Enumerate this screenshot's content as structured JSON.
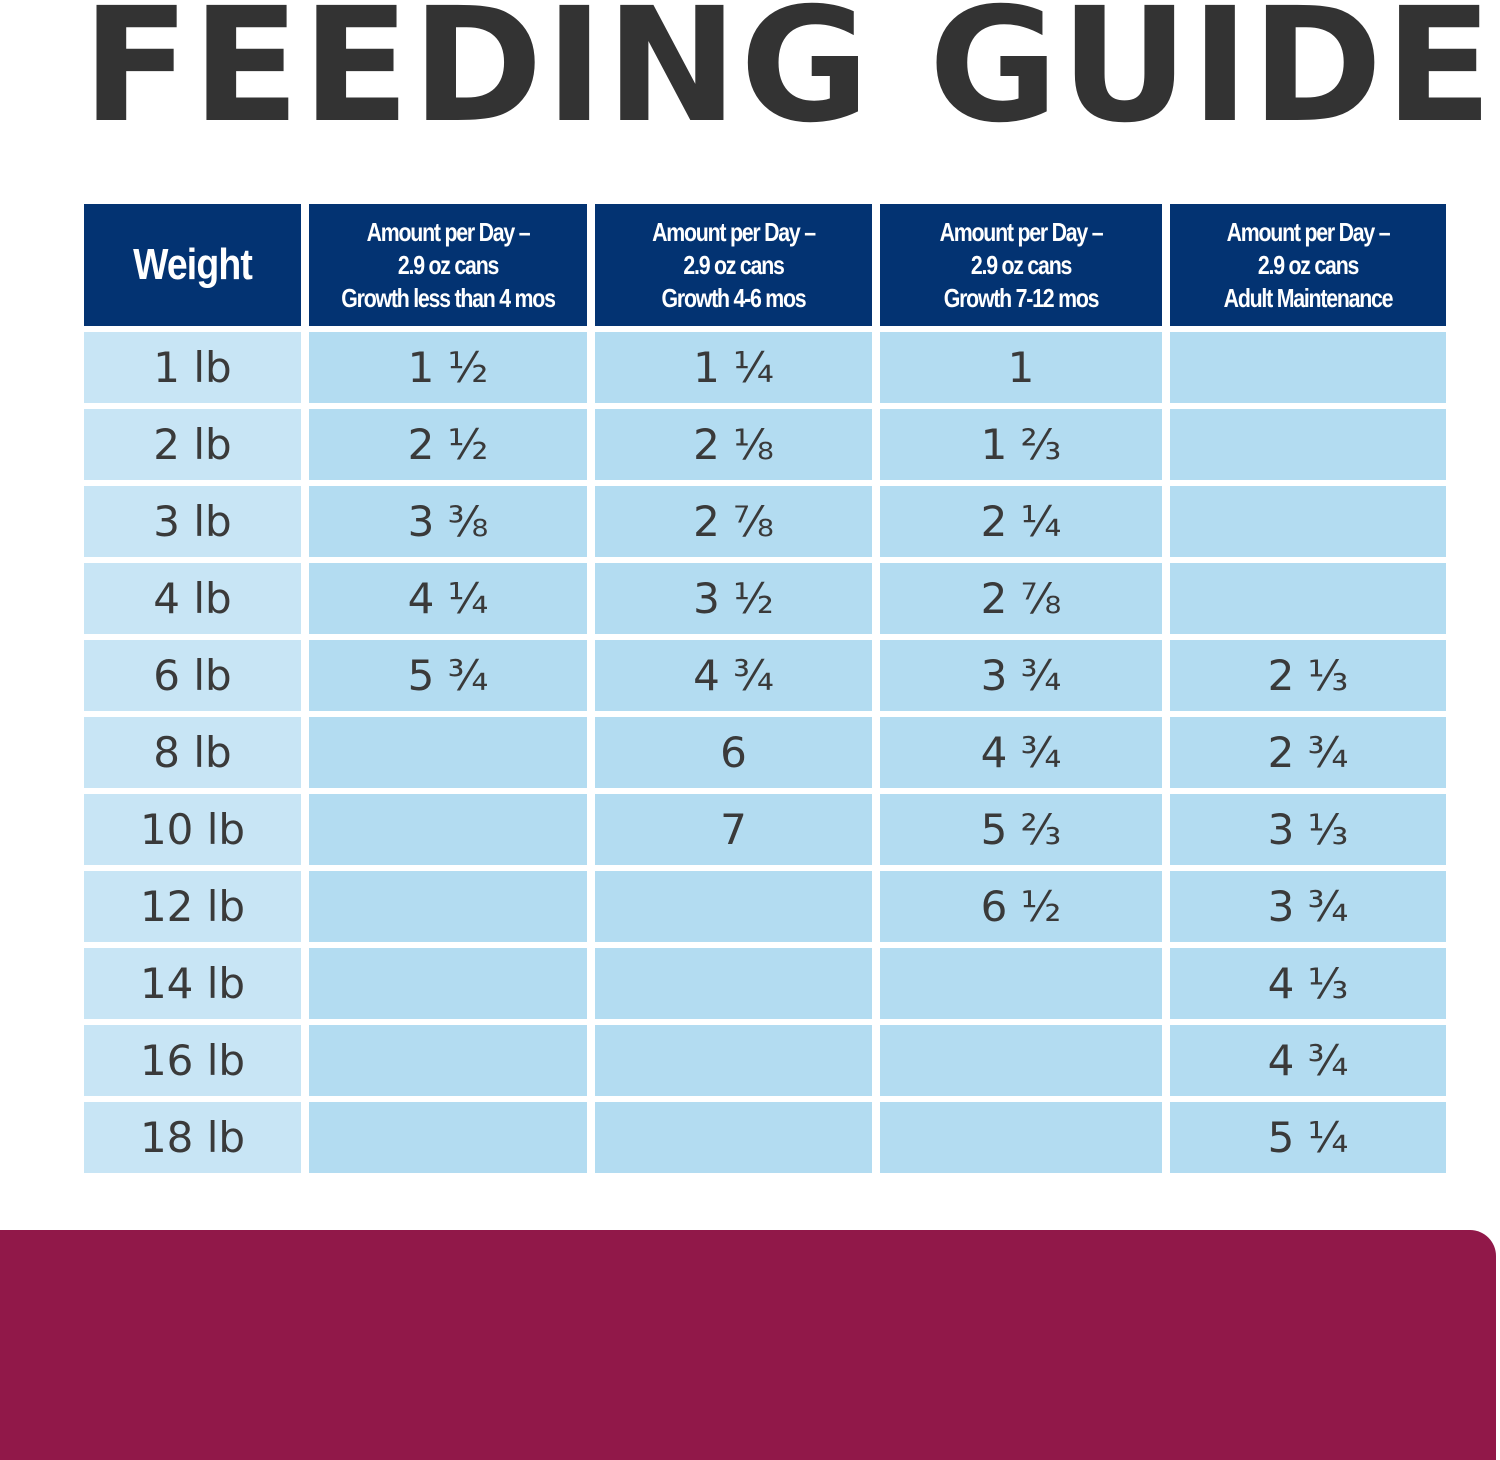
{
  "title": "FEEDING GUIDE",
  "colors": {
    "title_text": "#333333",
    "header_bg": "#033372",
    "header_text": "#ffffff",
    "cell_bg": "#b3dcf1",
    "weight_cell_bg": "#c8e5f5",
    "cell_text": "#3a3a3a",
    "bottom_panel": "#911849"
  },
  "table": {
    "headers": [
      {
        "lines": [
          "Weight"
        ]
      },
      {
        "lines": [
          "Amount per Day –",
          "2.9 oz cans",
          "Growth less than 4 mos"
        ]
      },
      {
        "lines": [
          "Amount per Day –",
          "2.9 oz cans",
          "Growth 4-6 mos"
        ]
      },
      {
        "lines": [
          "Amount per Day –",
          "2.9 oz cans",
          "Growth 7-12 mos"
        ]
      },
      {
        "lines": [
          "Amount per Day –",
          "2.9 oz cans",
          "Adult Maintenance"
        ]
      }
    ],
    "rows": [
      [
        "1 lb",
        "1 ½",
        "1 ¼",
        "1",
        ""
      ],
      [
        "2 lb",
        "2 ½",
        "2 ⅛",
        "1 ⅔",
        ""
      ],
      [
        "3 lb",
        "3 ⅜",
        "2 ⅞",
        "2 ¼",
        ""
      ],
      [
        "4 lb",
        "4 ¼",
        "3 ½",
        "2 ⅞",
        ""
      ],
      [
        "6 lb",
        "5 ¾",
        "4 ¾",
        "3 ¾",
        "2 ⅓"
      ],
      [
        "8 lb",
        "",
        "6",
        "4 ¾",
        "2 ¾"
      ],
      [
        "10 lb",
        "",
        "7",
        "5 ⅔",
        "3 ⅓"
      ],
      [
        "12 lb",
        "",
        "",
        "6 ½",
        "3 ¾"
      ],
      [
        "14 lb",
        "",
        "",
        "",
        "4 ⅓"
      ],
      [
        "16 lb",
        "",
        "",
        "",
        "4 ¾"
      ],
      [
        "18 lb",
        "",
        "",
        "",
        "5 ¼"
      ]
    ]
  }
}
